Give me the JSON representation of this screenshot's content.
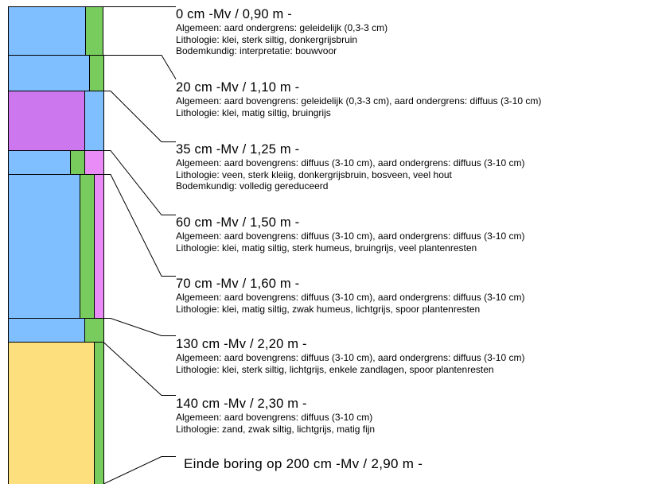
{
  "colors": {
    "blue": "#80bfff",
    "green": "#78cc5e",
    "purple": "#cc77ee",
    "pink": "#e98cf7",
    "yellow": "#fddf7e",
    "line": "#000000"
  },
  "layers": [
    {
      "depth": "0 cm -Mv / 0,90 m -",
      "lines": [
        "Algemeen: aard ondergrens: geleidelijk (0,3-3 cm)",
        "Lithologie: klei, sterk siltig, donkergrijsbruin",
        "Bodemkundig: interpretatie: bouwvoor"
      ]
    },
    {
      "depth": "20 cm -Mv / 1,10 m -",
      "lines": [
        "Algemeen: aard bovengrens: geleidelijk (0,3-3 cm), aard ondergrens: diffuus (3-10 cm)",
        "Lithologie: klei, matig siltig, bruingrijs"
      ]
    },
    {
      "depth": "35 cm -Mv / 1,25 m -",
      "lines": [
        "Algemeen: aard bovengrens: diffuus (3-10 cm), aard ondergrens: diffuus (3-10 cm)",
        "Lithologie: veen, sterk kleiig, donkergrijsbruin, bosveen, veel hout",
        "Bodemkundig: volledig gereduceerd"
      ]
    },
    {
      "depth": "60 cm -Mv / 1,50 m -",
      "lines": [
        "Algemeen: aard bovengrens: diffuus (3-10 cm), aard ondergrens: diffuus (3-10 cm)",
        "Lithologie: klei, matig siltig, sterk humeus, bruingrijs, veel plantenresten"
      ]
    },
    {
      "depth": "70 cm -Mv / 1,60 m -",
      "lines": [
        "Algemeen: aard bovengrens: diffuus (3-10 cm), aard ondergrens: diffuus (3-10 cm)",
        "Lithologie: klei, matig siltig, zwak humeus, lichtgrijs, spoor plantenresten"
      ]
    },
    {
      "depth": "130 cm -Mv / 2,20 m -",
      "lines": [
        "Algemeen: aard bovengrens: diffuus (3-10 cm), aard ondergrens: diffuus (3-10 cm)",
        "Lithologie: klei, sterk siltig, lichtgrijs, enkele zandlagen, spoor plantenresten"
      ]
    },
    {
      "depth": "140 cm -Mv / 2,30 m -",
      "lines": [
        "Algemeen: aard bovengrens: diffuus (3-10 cm)",
        "Lithologie: zand, zwak siltig, lichtgrijs, matig fijn"
      ]
    }
  ],
  "end_label": "Einde boring op 200 cm -Mv / 2,90 m -"
}
